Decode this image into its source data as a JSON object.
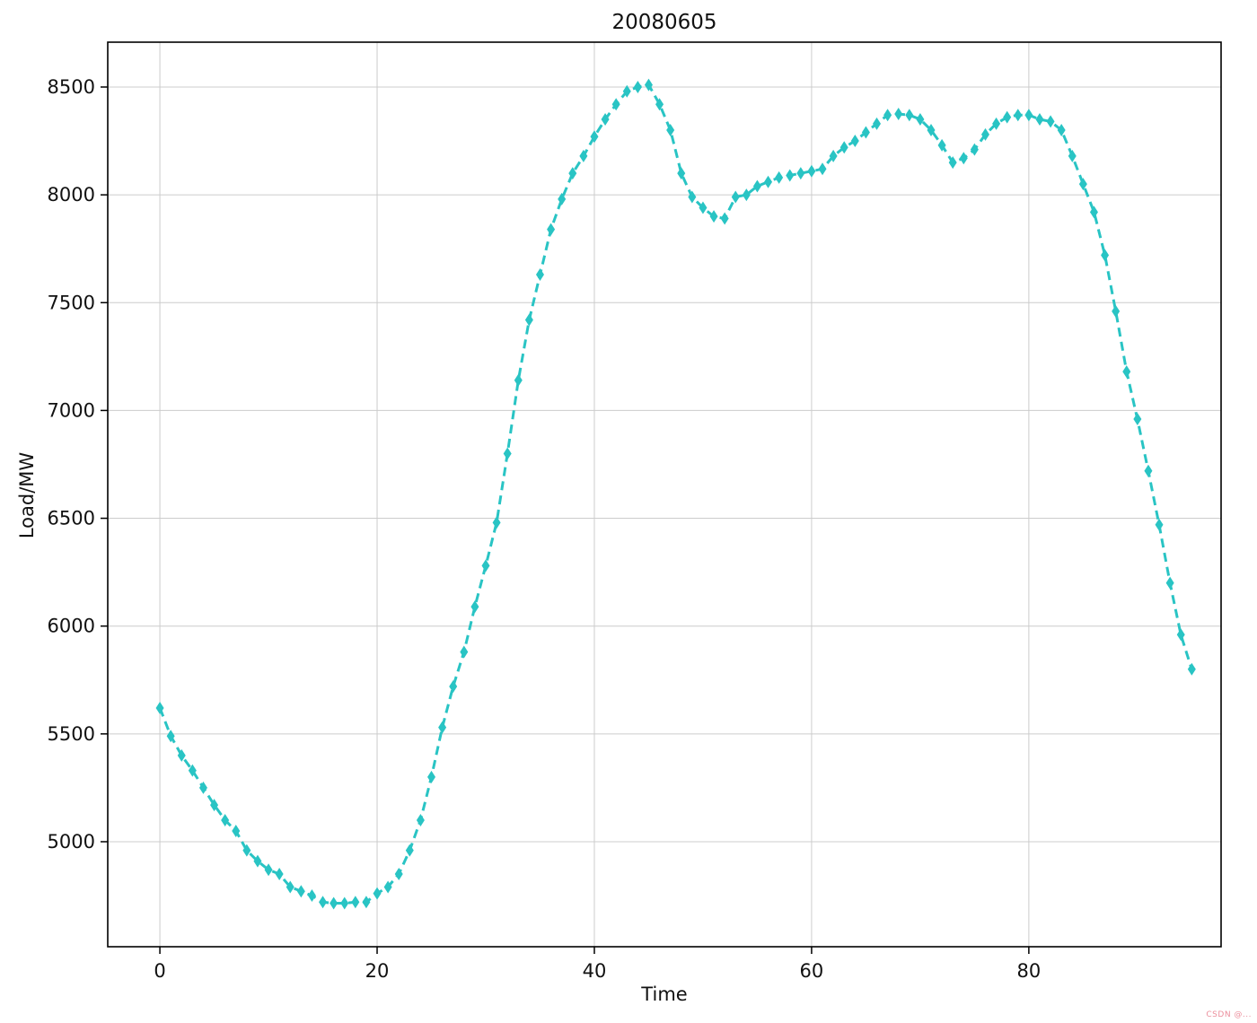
{
  "figure": {
    "title": "20080605",
    "xlabel": "Time",
    "ylabel": "Load/MW",
    "watermark": "CSDN @..."
  },
  "chart_data": {
    "type": "line",
    "title": "20080605",
    "xlabel": "Time",
    "ylabel": "Load/MW",
    "line_style": "dashed",
    "marker": "thin_diamond",
    "line_color": "#29c4c4",
    "grid": true,
    "grid_color": "#cccccc",
    "xticks": [
      0,
      20,
      40,
      60,
      80
    ],
    "yticks": [
      5000,
      5500,
      6000,
      6500,
      7000,
      7500,
      8000,
      8500
    ],
    "xlim": [
      -4.8,
      97.7
    ],
    "ylim": [
      4513,
      8708
    ],
    "x_is_index": true,
    "values": [
      5620,
      5490,
      5400,
      5330,
      5250,
      5170,
      5100,
      5050,
      4960,
      4910,
      4870,
      4850,
      4790,
      4770,
      4750,
      4720,
      4715,
      4715,
      4720,
      4720,
      4760,
      4790,
      4850,
      4960,
      5100,
      5300,
      5530,
      5720,
      5880,
      6090,
      6280,
      6480,
      6800,
      7140,
      7420,
      7630,
      7840,
      7980,
      8100,
      8180,
      8270,
      8350,
      8420,
      8480,
      8500,
      8510,
      8420,
      8300,
      8100,
      7990,
      7940,
      7900,
      7890,
      7990,
      8000,
      8040,
      8060,
      8080,
      8090,
      8100,
      8110,
      8120,
      8180,
      8220,
      8250,
      8290,
      8330,
      8370,
      8375,
      8370,
      8350,
      8300,
      8230,
      8150,
      8170,
      8210,
      8280,
      8330,
      8360,
      8370,
      8370,
      8350,
      8340,
      8300,
      8180,
      8050,
      7920,
      7720,
      7460,
      7180,
      6960,
      6720,
      6470,
      6200,
      5960,
      5800
    ]
  }
}
